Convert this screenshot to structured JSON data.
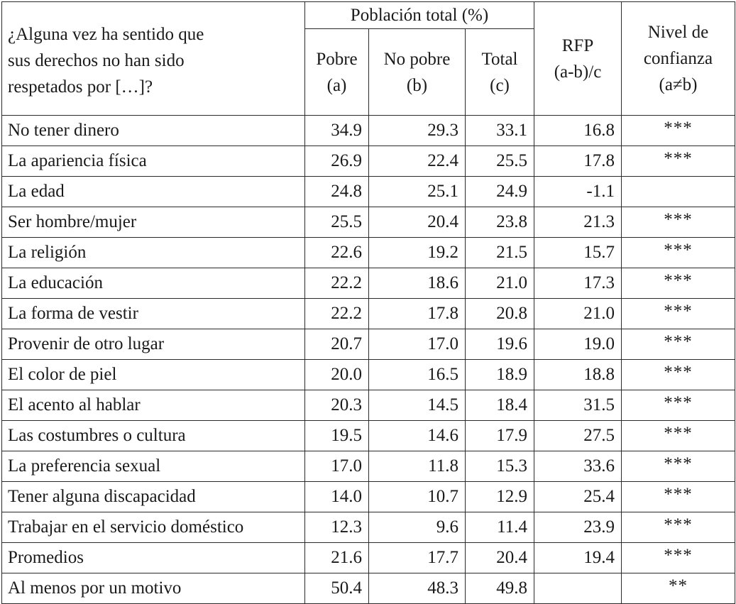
{
  "table": {
    "header": {
      "question_lines": [
        "¿Alguna vez ha sentido que",
        "sus derechos no han sido",
        "respetados por […]?"
      ],
      "group_label": "Población total (%)",
      "columns": [
        {
          "line1": "Pobre",
          "line2": "(a)"
        },
        {
          "line1": "No pobre",
          "line2": "(b)"
        },
        {
          "line1": "Total",
          "line2": "(c)"
        }
      ],
      "rfp": {
        "line1": "RFP",
        "line2": "(a-b)/c"
      },
      "confidence": {
        "line1": "Nivel de",
        "line2": "confianza",
        "line3": "(a≠b)"
      }
    },
    "rows": [
      {
        "label": "No tener dinero",
        "pobre": "34.9",
        "no_pobre": "29.3",
        "total": "33.1",
        "rfp": "16.8",
        "sig": "***"
      },
      {
        "label": "La apariencia física",
        "pobre": "26.9",
        "no_pobre": "22.4",
        "total": "25.5",
        "rfp": "17.8",
        "sig": "***"
      },
      {
        "label": "La edad",
        "pobre": "24.8",
        "no_pobre": "25.1",
        "total": "24.9",
        "rfp": "-1.1",
        "sig": ""
      },
      {
        "label": "Ser hombre/mujer",
        "pobre": "25.5",
        "no_pobre": "20.4",
        "total": "23.8",
        "rfp": "21.3",
        "sig": "***"
      },
      {
        "label": "La religión",
        "pobre": "22.6",
        "no_pobre": "19.2",
        "total": "21.5",
        "rfp": "15.7",
        "sig": "***"
      },
      {
        "label": "La educación",
        "pobre": "22.2",
        "no_pobre": "18.6",
        "total": "21.0",
        "rfp": "17.3",
        "sig": "***"
      },
      {
        "label": "La forma de vestir",
        "pobre": "22.2",
        "no_pobre": "17.8",
        "total": "20.8",
        "rfp": "21.0",
        "sig": "***"
      },
      {
        "label": "Provenir de otro lugar",
        "pobre": "20.7",
        "no_pobre": "17.0",
        "total": "19.6",
        "rfp": "19.0",
        "sig": "***"
      },
      {
        "label": "El color de piel",
        "pobre": "20.0",
        "no_pobre": "16.5",
        "total": "18.9",
        "rfp": "18.8",
        "sig": "***"
      },
      {
        "label": "El acento al hablar",
        "pobre": "20.3",
        "no_pobre": "14.5",
        "total": "18.4",
        "rfp": "31.5",
        "sig": "***"
      },
      {
        "label": "Las costumbres o cultura",
        "pobre": "19.5",
        "no_pobre": "14.6",
        "total": "17.9",
        "rfp": "27.5",
        "sig": "***"
      },
      {
        "label": "La preferencia sexual",
        "pobre": "17.0",
        "no_pobre": "11.8",
        "total": "15.3",
        "rfp": "33.6",
        "sig": "***"
      },
      {
        "label": "Tener alguna discapacidad",
        "pobre": "14.0",
        "no_pobre": "10.7",
        "total": "12.9",
        "rfp": "25.4",
        "sig": "***"
      },
      {
        "label": "Trabajar en el servicio doméstico",
        "pobre": "12.3",
        "no_pobre": "9.6",
        "total": "11.4",
        "rfp": "23.9",
        "sig": "***"
      },
      {
        "label": "Promedios",
        "pobre": "21.6",
        "no_pobre": "17.7",
        "total": "20.4",
        "rfp": "19.4",
        "sig": "***"
      },
      {
        "label": "Al menos por un motivo",
        "pobre": "50.4",
        "no_pobre": "48.3",
        "total": "49.8",
        "rfp": "",
        "sig": "**"
      }
    ]
  }
}
